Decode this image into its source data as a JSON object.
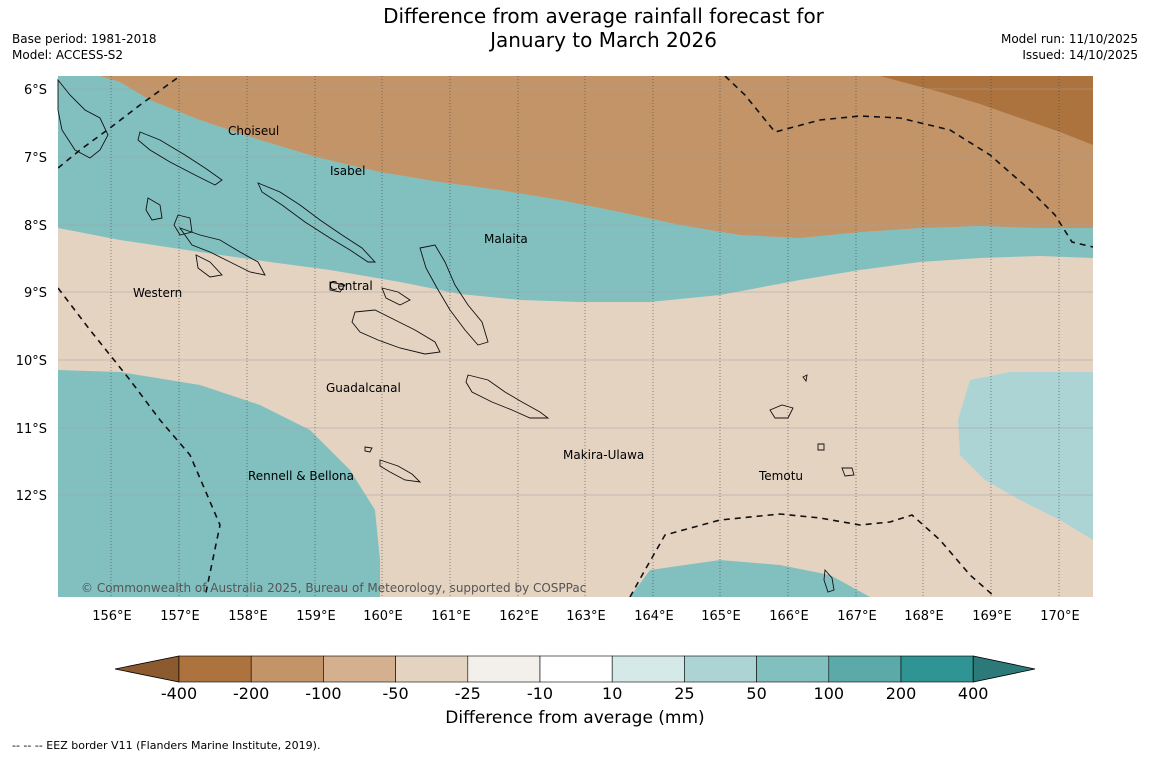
{
  "title": {
    "line1": "Difference from average rainfall forecast for",
    "line2": "January to March 2026"
  },
  "meta_left": {
    "base_period": "Base period: 1981-2018",
    "model": "Model: ACCESS-S2"
  },
  "meta_right": {
    "model_run": "Model run: 11/10/2025",
    "issued": "Issued: 14/10/2025"
  },
  "map": {
    "lat_labels": [
      "6°S",
      "7°S",
      "8°S",
      "9°S",
      "10°S",
      "11°S",
      "12°S"
    ],
    "lon_labels": [
      "156°E",
      "157°E",
      "158°E",
      "159°E",
      "160°E",
      "161°E",
      "162°E",
      "163°E",
      "164°E",
      "165°E",
      "166°E",
      "167°E",
      "168°E",
      "169°E",
      "170°E"
    ],
    "provinces": [
      "Choiseul",
      "Isabel",
      "Malaita",
      "Western",
      "Central",
      "Guadalcanal",
      "Makira-Ulawa",
      "Rennell & Bellona",
      "Temotu"
    ],
    "copyright": "© Commonwealth of Australia 2025, Bureau of Meteorology, supported by COSPPac"
  },
  "colorbar": {
    "ticks": [
      "-400",
      "-200",
      "-100",
      "-50",
      "-25",
      "-10",
      "10",
      "25",
      "50",
      "100",
      "200",
      "400"
    ],
    "colors": [
      "#8c5a2f",
      "#ad733e",
      "#c29468",
      "#d4b08e",
      "#e5d3c2",
      "#f3efea",
      "#ffffff",
      "#d5e9e8",
      "#acd4d5",
      "#82c0c0",
      "#5ca9a9",
      "#2f9594",
      "#2c7979"
    ],
    "label": "Difference from average (mm)"
  },
  "eez_note": "--  --  -- EEZ border V11 (Flanders Marine Institute, 2019)."
}
